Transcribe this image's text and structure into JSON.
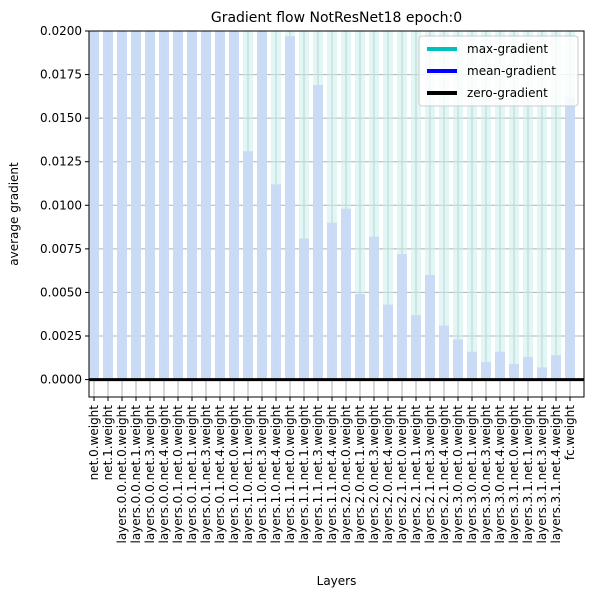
{
  "chart_data": {
    "type": "bar",
    "title": "Gradient flow NotResNet18 epoch:0",
    "xlabel": "Layers",
    "ylabel": "average gradient",
    "ylim": [
      -0.001,
      0.02
    ],
    "yticks": [
      "0.0000",
      "0.0025",
      "0.0050",
      "0.0075",
      "0.0100",
      "0.0125",
      "0.0150",
      "0.0175",
      "0.0200"
    ],
    "ytick_values": [
      0.0,
      0.0025,
      0.005,
      0.0075,
      0.01,
      0.0125,
      0.015,
      0.0175,
      0.02
    ],
    "grid": true,
    "legend_position": "top-right",
    "legend": [
      {
        "label": "max-gradient",
        "color": "#00bfbf"
      },
      {
        "label": "mean-gradient",
        "color": "#0000ff"
      },
      {
        "label": "zero-gradient",
        "color": "#000000"
      }
    ],
    "categories": [
      "net.0.weight",
      "net.1.weight",
      "layers.0.0.net.0.weight",
      "layers.0.0.net.1.weight",
      "layers.0.0.net.3.weight",
      "layers.0.0.net.4.weight",
      "layers.0.1.net.0.weight",
      "layers.0.1.net.1.weight",
      "layers.0.1.net.3.weight",
      "layers.0.1.net.4.weight",
      "layers.1.0.net.0.weight",
      "layers.1.0.net.1.weight",
      "layers.1.0.net.3.weight",
      "layers.1.0.net.4.weight",
      "layers.1.1.net.0.weight",
      "layers.1.1.net.1.weight",
      "layers.1.1.net.3.weight",
      "layers.1.1.net.4.weight",
      "layers.2.0.net.0.weight",
      "layers.2.0.net.1.weight",
      "layers.2.0.net.3.weight",
      "layers.2.0.net.4.weight",
      "layers.2.1.net.0.weight",
      "layers.2.1.net.1.weight",
      "layers.2.1.net.3.weight",
      "layers.2.1.net.4.weight",
      "layers.3.0.net.0.weight",
      "layers.3.0.net.1.weight",
      "layers.3.0.net.3.weight",
      "layers.3.0.net.4.weight",
      "layers.3.1.net.0.weight",
      "layers.3.1.net.1.weight",
      "layers.3.1.net.3.weight",
      "layers.3.1.net.4.weight",
      "fc.weight"
    ],
    "series": [
      {
        "name": "max-gradient",
        "color": "#c8f0ec",
        "values": [
          0.02,
          0.02,
          0.02,
          0.02,
          0.02,
          0.02,
          0.02,
          0.02,
          0.02,
          0.02,
          0.02,
          0.02,
          0.02,
          0.02,
          0.02,
          0.02,
          0.02,
          0.02,
          0.02,
          0.02,
          0.02,
          0.02,
          0.02,
          0.02,
          0.02,
          0.02,
          0.02,
          0.02,
          0.02,
          0.02,
          0.02,
          0.02,
          0.02,
          0.02,
          0.02
        ]
      },
      {
        "name": "mean-gradient",
        "color": "#c8daf4",
        "values": [
          0.02,
          0.02,
          0.02,
          0.02,
          0.02,
          0.02,
          0.02,
          0.02,
          0.02,
          0.02,
          0.02,
          0.0131,
          0.02,
          0.0112,
          0.0197,
          0.0081,
          0.0169,
          0.009,
          0.0098,
          0.0049,
          0.0082,
          0.0043,
          0.0072,
          0.0037,
          0.006,
          0.0031,
          0.0023,
          0.0016,
          0.001,
          0.0016,
          0.0009,
          0.0013,
          0.0007,
          0.0014,
          0.0162
        ]
      }
    ]
  }
}
